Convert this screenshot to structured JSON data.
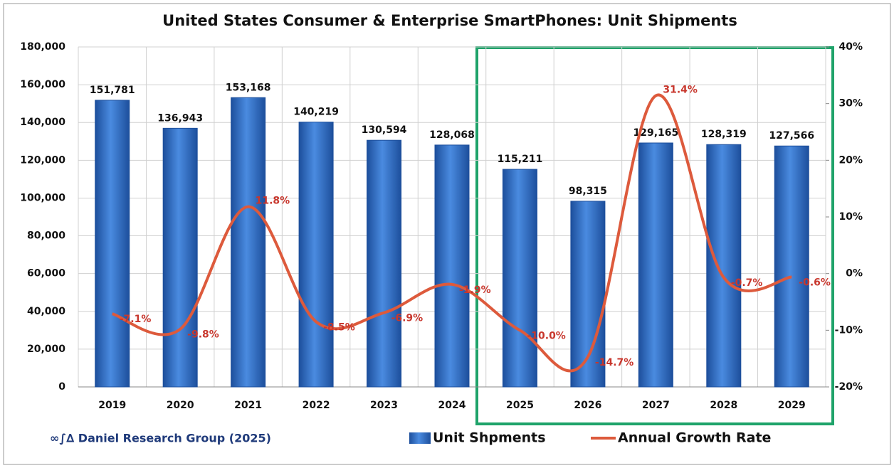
{
  "chart_data": {
    "type": "bar",
    "title": "United States Consumer & Enterprise SmartPhones: Unit Shipments",
    "source": "∞∫∆ Daniel Research Group (2025)",
    "categories": [
      "2019",
      "2020",
      "2021",
      "2022",
      "2023",
      "2024",
      "2025",
      "2026",
      "2027",
      "2028",
      "2029"
    ],
    "series": [
      {
        "name": "Unit Shpments",
        "type": "bar",
        "color": "#2f6fc4",
        "values": [
          151781,
          136943,
          153168,
          140219,
          130594,
          128068,
          115211,
          98315,
          129165,
          128319,
          127566
        ],
        "value_labels": [
          "151,781",
          "136,943",
          "153,168",
          "140,219",
          "130,594",
          "128,068",
          "115,211",
          "98,315",
          "129,165",
          "128,319",
          "127,566"
        ]
      },
      {
        "name": "Annual Growth Rate",
        "type": "line",
        "axis": "y2",
        "color": "#dd5a3c",
        "values": [
          -7.1,
          -9.8,
          11.8,
          -8.5,
          -6.9,
          -1.9,
          -10.0,
          -14.7,
          31.4,
          -0.7,
          -0.6
        ],
        "value_labels": [
          "-7.1%",
          "-9.8%",
          "11.8%",
          "-8.5%",
          "-6.9%",
          "-1.9%",
          "-10.0%",
          "-14.7%",
          "31.4%",
          "-0.7%",
          "-0.6%"
        ]
      }
    ],
    "ylim": [
      0,
      180000
    ],
    "yticks": [
      0,
      {
        "value": 20000,
        "label": "20,000"
      },
      {
        "value": 40000,
        "label": "40,000"
      },
      {
        "value": 60000,
        "label": "60,000"
      },
      {
        "value": 80000,
        "label": "80,000"
      },
      {
        "value": 100000,
        "label": "100,000"
      },
      {
        "value": 120000,
        "label": "120,000"
      },
      {
        "value": 140000,
        "label": "140,000"
      },
      {
        "value": 160000,
        "label": "160,000"
      },
      {
        "value": 180000,
        "label": "180,000"
      }
    ],
    "y2lim": [
      -20,
      40
    ],
    "y2ticks": [
      {
        "value": -20,
        "label": "-20%"
      },
      {
        "value": -10,
        "label": "-10%"
      },
      {
        "value": 0,
        "label": "0%"
      },
      {
        "value": 10,
        "label": "10%"
      },
      {
        "value": 20,
        "label": "20%"
      },
      {
        "value": 30,
        "label": "30%"
      },
      {
        "value": 40,
        "label": "40%"
      }
    ],
    "grid": true,
    "legend": "bottom"
  }
}
